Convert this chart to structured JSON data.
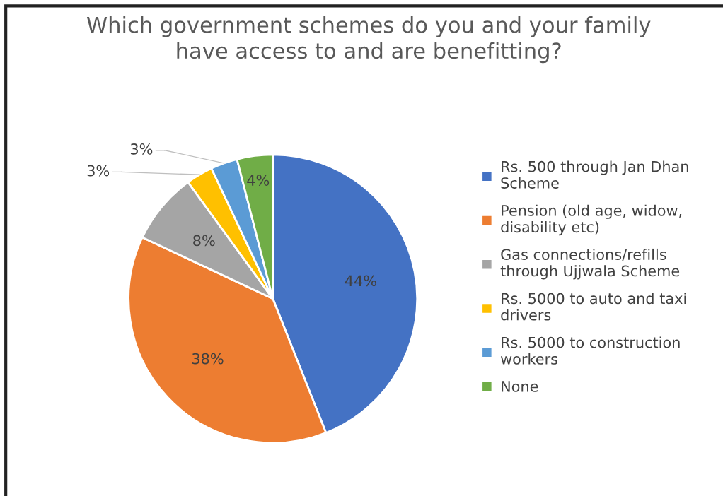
{
  "chart_data": {
    "type": "pie",
    "title": "Which government schemes do you and your family\nhave access to and are benefitting?",
    "categories": [
      "Rs. 500 through Jan Dhan\nScheme",
      "Pension (old age, widow,\ndisability etc)",
      "Gas connections/refills\nthrough Ujjwala Scheme",
      "Rs. 5000 to auto and taxi\ndrivers",
      "Rs. 5000 to construction\nworkers",
      "None"
    ],
    "values": [
      44,
      38,
      8,
      3,
      3,
      4
    ],
    "colors": [
      "#4472c4",
      "#ed7d31",
      "#a5a5a5",
      "#ffc000",
      "#5b9bd5",
      "#70ad47"
    ],
    "value_labels": [
      "44%",
      "38%",
      "8%",
      "3%",
      "3%",
      "4%"
    ],
    "legend": "right"
  }
}
